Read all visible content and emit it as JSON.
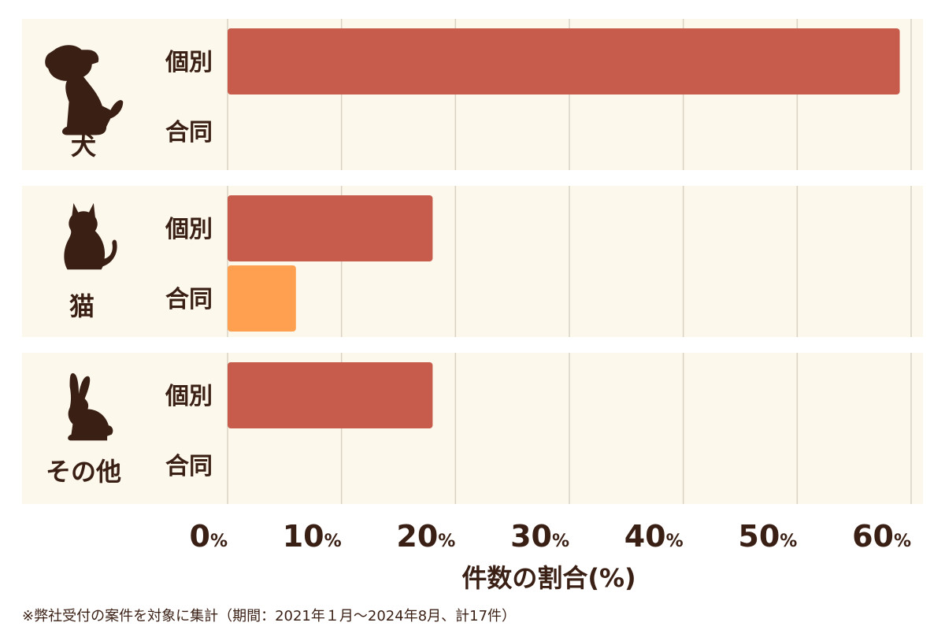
{
  "chart_data": {
    "type": "bar",
    "orientation": "horizontal",
    "groups": [
      {
        "label": "犬",
        "icon": "dog-icon",
        "rows": [
          {
            "label": "個別",
            "value": 59,
            "color": "#c75c4d"
          },
          {
            "label": "合同",
            "value": 0,
            "color": "#ffa050"
          }
        ]
      },
      {
        "label": "猫",
        "icon": "cat-icon",
        "rows": [
          {
            "label": "個別",
            "value": 18,
            "color": "#c75c4d"
          },
          {
            "label": "合同",
            "value": 6,
            "color": "#ffa050"
          }
        ]
      },
      {
        "label": "その他",
        "icon": "rabbit-icon",
        "rows": [
          {
            "label": "個別",
            "value": 18,
            "color": "#c75c4d"
          },
          {
            "label": "合同",
            "value": 0,
            "color": "#ffa050"
          }
        ]
      }
    ],
    "x_ticks": [
      {
        "num": "0",
        "unit": "%"
      },
      {
        "num": "10",
        "unit": "%"
      },
      {
        "num": "20",
        "unit": "%"
      },
      {
        "num": "30",
        "unit": "%"
      },
      {
        "num": "40",
        "unit": "%"
      },
      {
        "num": "50",
        "unit": "%"
      },
      {
        "num": "60",
        "unit": "%"
      }
    ],
    "xlim": [
      0,
      60
    ],
    "xlabel": "件数の割合(%)",
    "grid": true,
    "colors": {
      "panel_bg": "#fdf8ec",
      "grid": "#d9d2c3",
      "individual": "#c75c4d",
      "joint": "#ffa050",
      "text": "#3a1f14"
    }
  },
  "footnote": "※弊社受付の案件を対象に集計（期間：2021年１月～2024年8月、計17件）"
}
